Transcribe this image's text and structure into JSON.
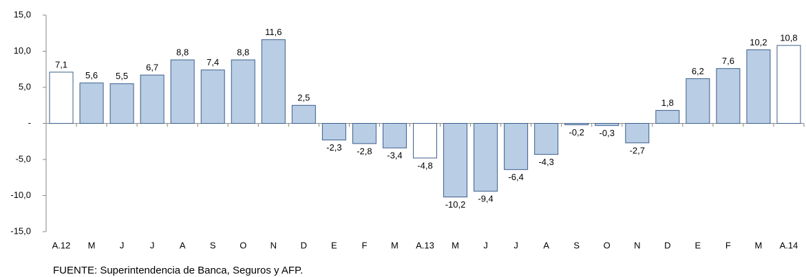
{
  "chart_data": {
    "type": "bar",
    "categories": [
      "A.12",
      "M",
      "J",
      "J",
      "A",
      "S",
      "O",
      "N",
      "D",
      "E",
      "F",
      "M",
      "A.13",
      "M",
      "J",
      "J",
      "A",
      "S",
      "O",
      "N",
      "D",
      "E",
      "F",
      "M",
      "A.14"
    ],
    "values": [
      7.1,
      5.6,
      5.5,
      6.7,
      8.8,
      7.4,
      8.8,
      11.6,
      2.5,
      -2.3,
      -2.8,
      -3.4,
      -4.8,
      -10.2,
      -9.4,
      -6.4,
      -4.3,
      -0.2,
      -0.3,
      -2.7,
      1.8,
      6.2,
      7.6,
      10.2,
      10.8
    ],
    "value_labels": [
      "7,1",
      "5,6",
      "5,5",
      "6,7",
      "8,8",
      "7,4",
      "8,8",
      "11,6",
      "2,5",
      "-2,3",
      "-2,8",
      "-3,4",
      "-4,8",
      "-10,2",
      "-9,4",
      "-6,4",
      "-4,3",
      "-0,2",
      "-0,3",
      "-2,7",
      "1,8",
      "6,2",
      "7,6",
      "10,2",
      "10,8"
    ],
    "colors": [
      "#ffffff",
      "#b9cde5",
      "#b9cde5",
      "#b9cde5",
      "#b9cde5",
      "#b9cde5",
      "#b9cde5",
      "#b9cde5",
      "#b9cde5",
      "#b9cde5",
      "#b9cde5",
      "#b9cde5",
      "#ffffff",
      "#b9cde5",
      "#b9cde5",
      "#b9cde5",
      "#b9cde5",
      "#b9cde5",
      "#b9cde5",
      "#b9cde5",
      "#b9cde5",
      "#b9cde5",
      "#b9cde5",
      "#b9cde5",
      "#ffffff"
    ],
    "ylim": [
      -15,
      15
    ],
    "yticks": [
      {
        "value": 15,
        "label": "15,0"
      },
      {
        "value": 10,
        "label": "10,0"
      },
      {
        "value": 5,
        "label": "5,0"
      },
      {
        "value": 0,
        "label": "-"
      },
      {
        "value": -5,
        "label": "-5,0"
      },
      {
        "value": -10,
        "label": "-10,0"
      },
      {
        "value": -15,
        "label": "-15,0"
      }
    ],
    "source": "FUENTE: Superintendencia de Banca, Seguros y AFP."
  }
}
